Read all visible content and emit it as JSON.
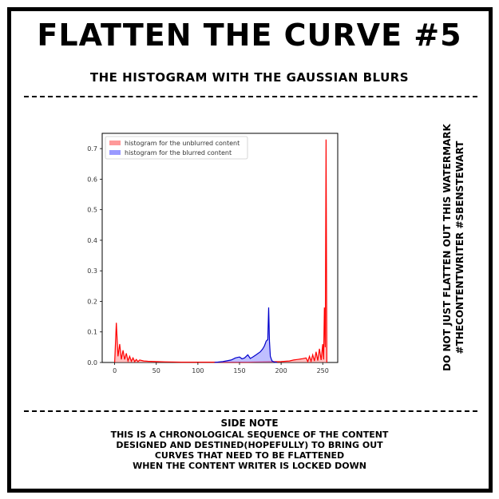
{
  "header": {
    "title": "FLATTEN THE CURVE #5",
    "subtitle": "THE HISTOGRAM WITH THE GAUSSIAN BLURS"
  },
  "watermark": {
    "line1": "DO NOT JUST FLATTEN OUT THIS WATERMARK",
    "line2": "#THECONTENTWRITER #SBENSTEWART"
  },
  "side_note": {
    "heading": "SIDE NOTE",
    "lines": [
      "THIS IS A CHRONOLOGICAL SEQUENCE OF THE CONTENT",
      "DESIGNED AND DESTINED(HOPEFULLY) TO BRING OUT",
      "CURVES THAT NEED TO BE FLATTENED",
      "WHEN THE CONTENT WRITER IS LOCKED DOWN"
    ]
  },
  "chart_data": {
    "type": "area",
    "title": "",
    "xlabel": "",
    "ylabel": "",
    "xlim": [
      -15,
      268
    ],
    "ylim": [
      0,
      0.75
    ],
    "x_ticks": [
      0,
      50,
      100,
      150,
      200,
      250
    ],
    "y_ticks": [
      0.0,
      0.1,
      0.2,
      0.3,
      0.4,
      0.5,
      0.6,
      0.7
    ],
    "legend_position": "top-left",
    "grid": false,
    "series": [
      {
        "name": "histogram for the unblurred content",
        "color": "#ff0000",
        "fill": "#ff7f7f",
        "x": [
          0,
          2,
          4,
          6,
          8,
          10,
          12,
          14,
          16,
          18,
          20,
          22,
          24,
          26,
          28,
          30,
          35,
          40,
          50,
          60,
          80,
          100,
          120,
          140,
          160,
          180,
          200,
          210,
          215,
          220,
          225,
          230,
          232,
          234,
          236,
          238,
          240,
          242,
          244,
          246,
          248,
          250,
          251,
          252,
          253,
          254,
          255
        ],
        "y": [
          0.0,
          0.13,
          0.02,
          0.06,
          0.01,
          0.04,
          0.01,
          0.03,
          0.005,
          0.02,
          0.004,
          0.015,
          0.003,
          0.01,
          0.003,
          0.008,
          0.005,
          0.004,
          0.003,
          0.002,
          0.001,
          0.001,
          0.001,
          0.001,
          0.001,
          0.002,
          0.003,
          0.005,
          0.008,
          0.01,
          0.012,
          0.015,
          0.003,
          0.02,
          0.004,
          0.025,
          0.005,
          0.035,
          0.006,
          0.045,
          0.008,
          0.06,
          0.01,
          0.18,
          0.05,
          0.73,
          0.0
        ]
      },
      {
        "name": "histogram for the blurred content",
        "color": "#0000cc",
        "fill": "#8080ff",
        "x": [
          120,
          130,
          140,
          145,
          150,
          153,
          156,
          160,
          163,
          166,
          170,
          175,
          178,
          180,
          182,
          184,
          185,
          186,
          187,
          189,
          192,
          195
        ],
        "y": [
          0.0,
          0.003,
          0.008,
          0.015,
          0.018,
          0.012,
          0.015,
          0.025,
          0.013,
          0.018,
          0.025,
          0.035,
          0.045,
          0.055,
          0.07,
          0.075,
          0.18,
          0.07,
          0.02,
          0.005,
          0.001,
          0.0
        ]
      }
    ]
  }
}
